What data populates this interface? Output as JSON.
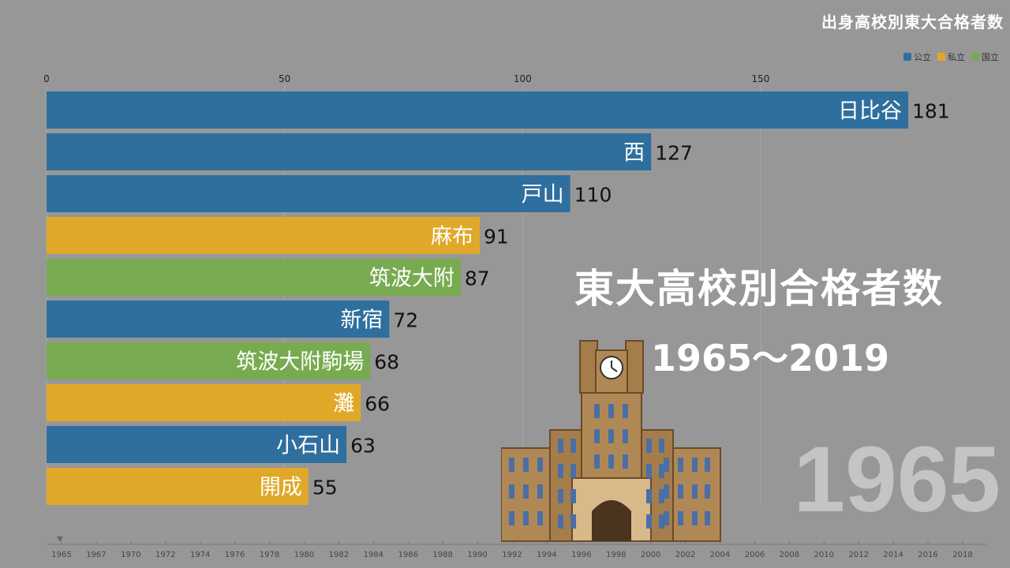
{
  "header": {
    "title": "出身高校別東大合格者数"
  },
  "legend": [
    {
      "label": "公立",
      "color": "#2e6f9e"
    },
    {
      "label": "私立",
      "color": "#e0a828"
    },
    {
      "label": "国立",
      "color": "#78ab50"
    }
  ],
  "overlay": {
    "title": "東大高校別合格者数",
    "subtitle": "1965～2019",
    "year": "1965"
  },
  "chart_data": {
    "type": "bar",
    "orientation": "horizontal",
    "xlim": [
      0,
      181
    ],
    "xticks": [
      0,
      50,
      100,
      150
    ],
    "categories": [
      "日比谷",
      "西",
      "戸山",
      "麻布",
      "筑波大附",
      "新宿",
      "筑波大附駒場",
      "灘",
      "小石山",
      "開成"
    ],
    "values": [
      181,
      127,
      110,
      91,
      87,
      72,
      68,
      66,
      63,
      55
    ],
    "groups": [
      "公立",
      "公立",
      "公立",
      "私立",
      "国立",
      "公立",
      "国立",
      "私立",
      "公立",
      "私立"
    ],
    "grid": true,
    "legend_position": "top-right",
    "timeline": [
      "1965",
      "1967",
      "1970",
      "1972",
      "1974",
      "1976",
      "1978",
      "1980",
      "1982",
      "1984",
      "1986",
      "1988",
      "1990",
      "1992",
      "1994",
      "1996",
      "1998",
      "2000",
      "2002",
      "2004",
      "2006",
      "2008",
      "2010",
      "2012",
      "2014",
      "2016",
      "2018"
    ]
  }
}
